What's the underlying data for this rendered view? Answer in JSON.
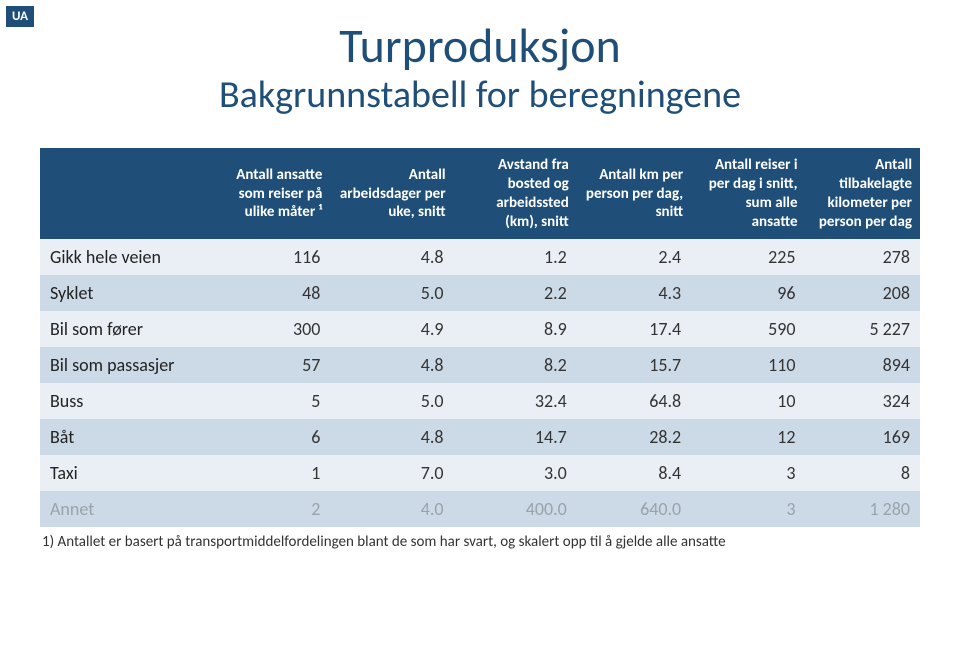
{
  "badge": "UA",
  "title": "Turproduksjon",
  "subtitle": "Bakgrunnstabell for beregningene",
  "footnote": "1) Antallet er basert på transportmiddelfordelingen blant de som har svart, og skalert opp til å gjelde alle ansatte",
  "table": {
    "columns": [
      "",
      "Antall ansatte som reiser på ulike måter ¹",
      "Antall arbeidsdager per uke, snitt",
      "Avstand fra bosted og arbeidssted (km), snitt",
      "Antall km per person per dag, snitt",
      "Antall reiser i per dag i snitt, sum alle ansatte",
      "Antall tilbakelagte kilometer per person per dag"
    ],
    "rows": [
      {
        "label": "Gikk hele veien",
        "c1": "116",
        "c2": "4.8",
        "c3": "1.2",
        "c4": "2.4",
        "c5": "225",
        "c6": "278",
        "band": "light",
        "muted": false
      },
      {
        "label": "Syklet",
        "c1": "48",
        "c2": "5.0",
        "c3": "2.2",
        "c4": "4.3",
        "c5": "96",
        "c6": "208",
        "band": "dark",
        "muted": false
      },
      {
        "label": "Bil som fører",
        "c1": "300",
        "c2": "4.9",
        "c3": "8.9",
        "c4": "17.4",
        "c5": "590",
        "c6": "5 227",
        "band": "light",
        "muted": false
      },
      {
        "label": "Bil som passasjer",
        "c1": "57",
        "c2": "4.8",
        "c3": "8.2",
        "c4": "15.7",
        "c5": "110",
        "c6": "894",
        "band": "dark",
        "muted": false
      },
      {
        "label": "Buss",
        "c1": "5",
        "c2": "5.0",
        "c3": "32.4",
        "c4": "64.8",
        "c5": "10",
        "c6": "324",
        "band": "light",
        "muted": false
      },
      {
        "label": "Båt",
        "c1": "6",
        "c2": "4.8",
        "c3": "14.7",
        "c4": "28.2",
        "c5": "12",
        "c6": "169",
        "band": "dark",
        "muted": false
      },
      {
        "label": "Taxi",
        "c1": "1",
        "c2": "7.0",
        "c3": "3.0",
        "c4": "8.4",
        "c5": "3",
        "c6": "8",
        "band": "light",
        "muted": false
      },
      {
        "label": "Annet",
        "c1": "2",
        "c2": "4.0",
        "c3": "400.0",
        "c4": "640.0",
        "c5": "3",
        "c6": "1 280",
        "band": "dark",
        "muted": true
      }
    ]
  },
  "styling": {
    "header_bg": "#1f4e79",
    "header_fg": "#ffffff",
    "band_light": "#e9eff5",
    "band_dark": "#ccd9e6",
    "title_color": "#1f4e79",
    "muted_color": "#9aa3ab",
    "title_fontsize_pt": 36,
    "subtitle_fontsize_pt": 28,
    "header_fontsize_pt": 11,
    "cell_fontsize_pt": 14,
    "footnote_fontsize_pt": 11
  }
}
